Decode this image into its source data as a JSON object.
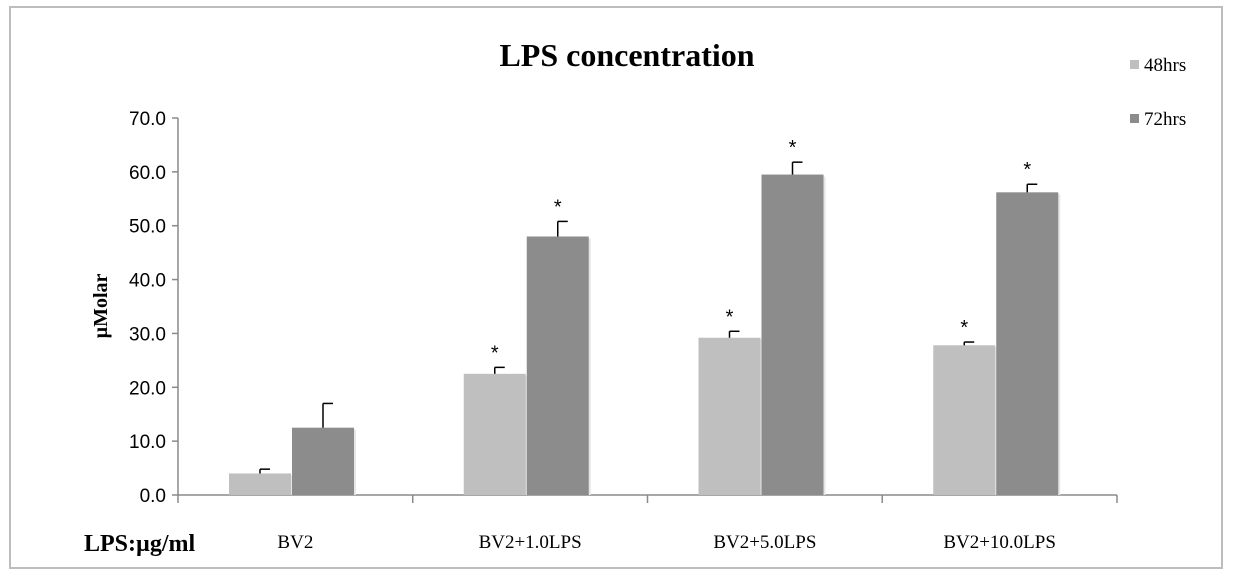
{
  "chart_data": {
    "type": "bar",
    "title": "LPS concentration",
    "ylabel": "µMolar",
    "xlabel_prefix": "LPS:µg/ml",
    "categories": [
      "BV2",
      "BV2+1.0LPS",
      "BV2+5.0LPS",
      "BV2+10.0LPS"
    ],
    "series": [
      {
        "name": "48hrs",
        "color": "#bfbfbf",
        "values": [
          4.0,
          22.5,
          29.2,
          27.8
        ],
        "errors": [
          0.8,
          1.2,
          1.2,
          0.6
        ],
        "significance": [
          "",
          "*",
          "*",
          "*"
        ]
      },
      {
        "name": "72hrs",
        "color": "#8c8c8c",
        "values": [
          12.5,
          48.0,
          59.5,
          56.2
        ],
        "errors": [
          4.5,
          2.8,
          2.3,
          1.5
        ],
        "significance": [
          "",
          "*",
          "*",
          "*"
        ]
      }
    ],
    "ylim": [
      0,
      70
    ],
    "yticks": [
      "0.0",
      "10.0",
      "20.0",
      "30.0",
      "40.0",
      "50.0",
      "60.0",
      "70.0"
    ],
    "legend_position": "top-right",
    "grid": false
  }
}
